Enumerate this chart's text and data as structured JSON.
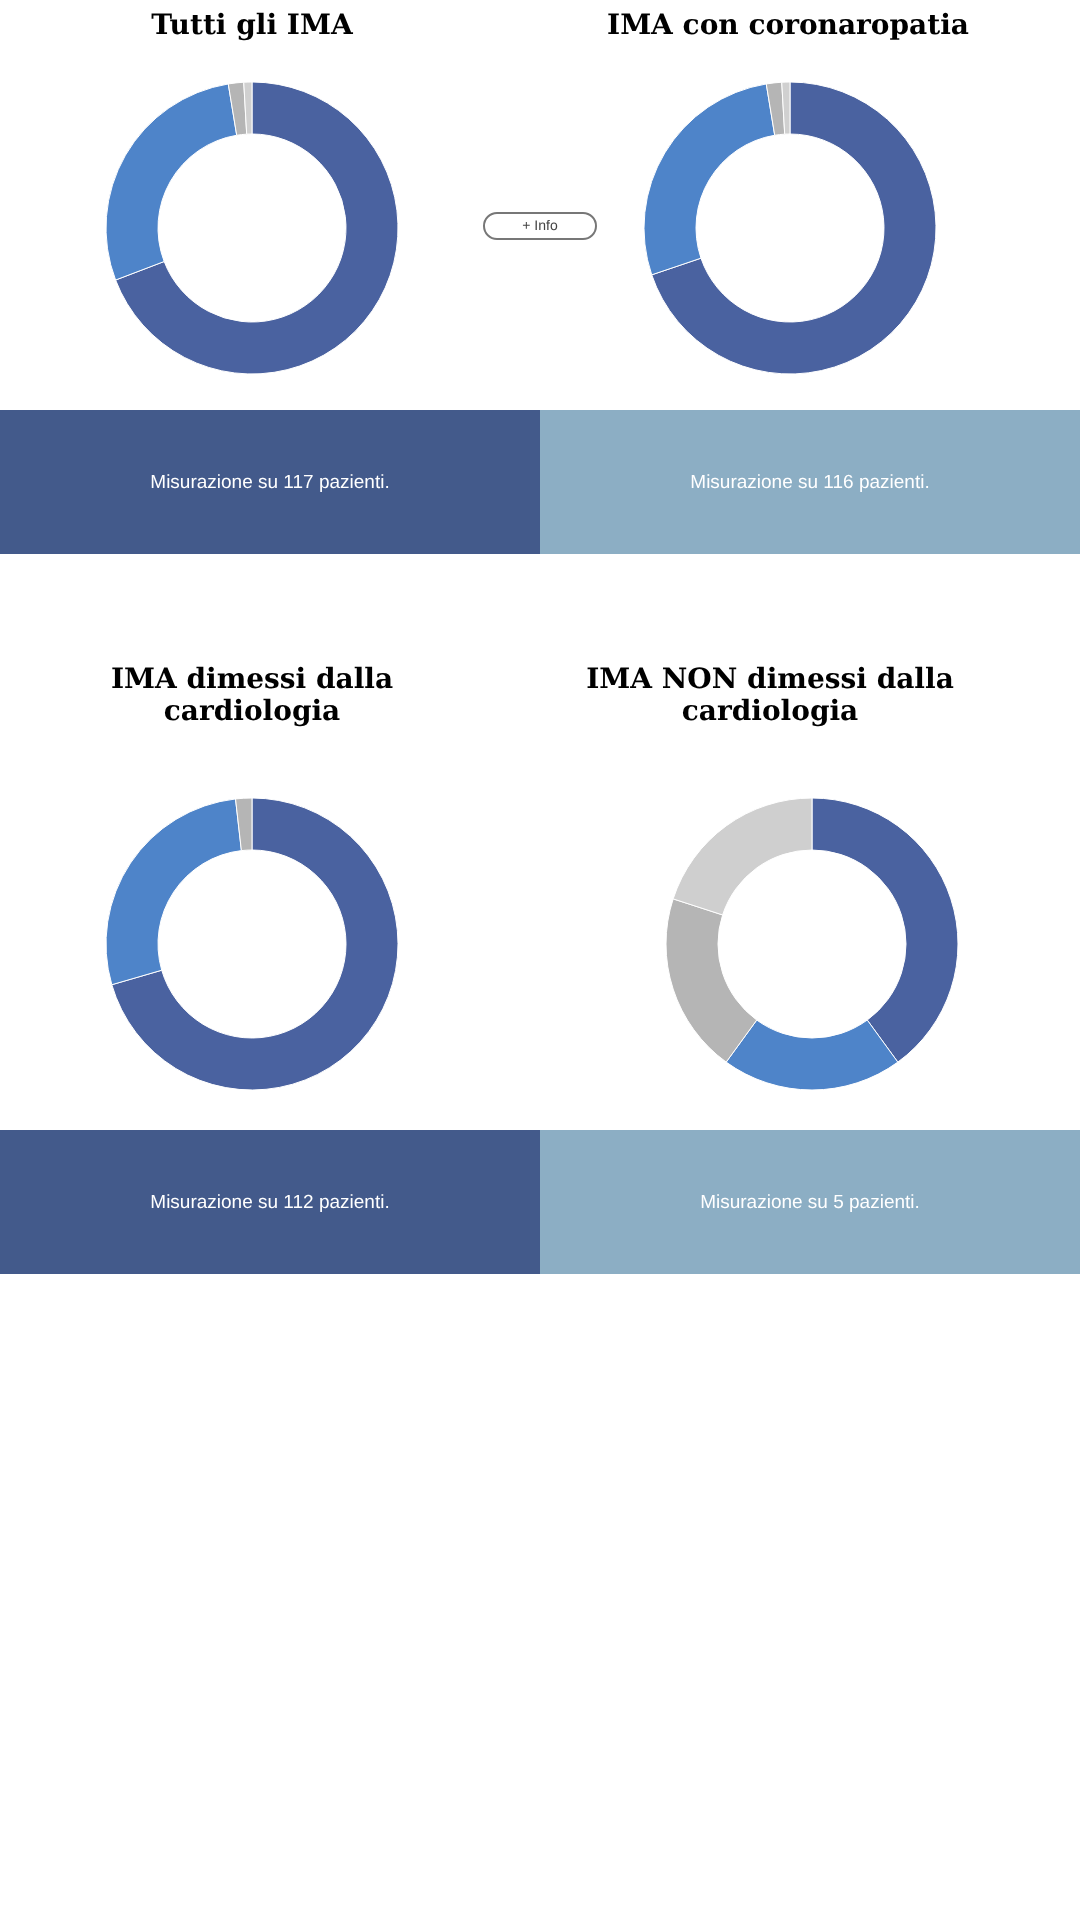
{
  "chart_data": [
    {
      "type": "donut",
      "title": "Tutti gli IMA",
      "categories": [
        null,
        null,
        null,
        null
      ],
      "values": [
        69.2,
        28.2,
        1.7,
        0.9
      ],
      "colors": [
        "#4a62a0",
        "#4e84c9",
        "#b5b5b5",
        "#d0d0d0"
      ],
      "annotations": [
        "Misurazione su 117 pazienti."
      ]
    },
    {
      "type": "other",
      "annotations": [
        "+ Info"
      ]
    },
    {
      "type": "donut",
      "title": "IMA con coronaropatia",
      "categories": [
        null,
        null,
        null,
        null
      ],
      "values": [
        69.8,
        27.6,
        1.7,
        0.9
      ],
      "colors": [
        "#4a62a0",
        "#4e84c9",
        "#b5b5b5",
        "#d0d0d0"
      ],
      "annotations": [
        "Misurazione su 116 pazienti."
      ]
    },
    {
      "type": "donut",
      "title": "IMA dimessi dalla cardiologia",
      "categories": [
        null,
        null,
        null
      ],
      "values": [
        70.5,
        27.7,
        1.8
      ],
      "colors": [
        "#4a62a0",
        "#4e84c9",
        "#b5b5b5"
      ],
      "annotations": [
        "Misurazione su 112 pazienti."
      ]
    },
    {
      "type": "donut",
      "title": "IMA NON dimessi dalla cardiologia",
      "categories": [
        null,
        null,
        null,
        null
      ],
      "values": [
        40,
        20,
        20,
        20
      ],
      "colors": [
        "#4a62a0",
        "#4e84c9",
        "#b5b5b5",
        "#cfcfcf"
      ],
      "annotations": [
        "Misurazione su 5 pazienti."
      ]
    }
  ]
}
